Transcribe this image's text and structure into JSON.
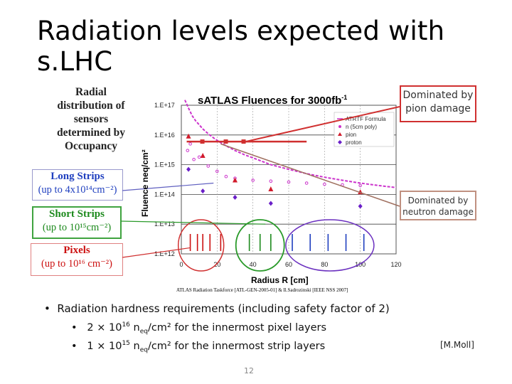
{
  "slide": {
    "title": "Radiation levels expected with s.LHC",
    "left_caption": [
      "Radial",
      "distribution of",
      "sensors",
      "determined by",
      "Occupancy"
    ],
    "boxes": {
      "long": {
        "title": "Long Strips",
        "sub": "(up to 4x10¹⁴cm⁻²)"
      },
      "short": {
        "title": "Short Strips",
        "sub": "(up to 10¹⁵cm⁻²)"
      },
      "pixels": {
        "title": "Pixels",
        "sub": "(up to 10¹⁶ cm⁻²)"
      }
    },
    "annotations": {
      "pion": [
        "Dominated by",
        "pion damage"
      ],
      "neutron": [
        "Dominated by",
        "neutron damage"
      ]
    },
    "bullet_main": "Radiation hardness requirements (including safety factor of 2)",
    "bullet_sub1": {
      "pre": "2 × 10",
      "exp": "16",
      "mid": " n",
      "subscript": "eq",
      "post": "/cm² for the innermost pixel layers"
    },
    "bullet_sub2": {
      "pre": "1 × 10",
      "exp": "15",
      "mid": " n",
      "subscript": "eq",
      "post": "/cm² for the innermost strip layers"
    },
    "credit": "[M.Moll]",
    "page_number": "12"
  },
  "colors": {
    "pion_box": "#d03030",
    "long": "#1f3fbf",
    "short": "#1d8a1d",
    "pixels": "#cc1010",
    "fit": "#cc33cc",
    "neutron": "#7a2fbf",
    "pion": "#d11b2b",
    "proton": "#6a1fc8"
  },
  "chart_data": {
    "type": "scatter",
    "title": "sATLAS Fluences for 3000fb",
    "title_sup": "-1",
    "xlabel": "Radius R [cm]",
    "ylabel": "Fluence neq/cm²",
    "x_ticks": [
      "0",
      "20",
      "40",
      "60",
      "80",
      "100",
      "120"
    ],
    "y_ticks": [
      "1.E+17",
      "1.E+16",
      "1.E+15",
      "1.E+14",
      "1.E+13",
      "1.E+12"
    ],
    "xlim": [
      0,
      120
    ],
    "ylim_log10": [
      12,
      17
    ],
    "log_y": true,
    "source_note": "ATLAS Radiation Taskforce [ATL-GEN-2005-01] & Il.Sadrozinski [IEEE NSS 2007]",
    "legend_position": "top-right",
    "series": [
      {
        "name": "ATRTF Formula",
        "kind": "line",
        "x": [
          2,
          4,
          6,
          8,
          10,
          12,
          15,
          18,
          22,
          26,
          30,
          35,
          40,
          45,
          50,
          60,
          70,
          80,
          90,
          100,
          110,
          120
        ],
        "y": [
          1.5e+17,
          8e+16,
          4.5e+16,
          3e+16,
          2.2e+16,
          1.6e+16,
          1.1e+16,
          8000000000000000.0,
          5500000000000000.0,
          4000000000000000.0,
          3000000000000000.0,
          2200000000000000.0,
          1700000000000000.0,
          1300000000000000.0,
          1000000000000000.0,
          700000000000000.0,
          500000000000000.0,
          380000000000000.0,
          300000000000000.0,
          240000000000000.0,
          200000000000000.0,
          170000000000000.0
        ]
      },
      {
        "name": "n (5cm poly)",
        "kind": "marker",
        "x": [
          3.5,
          5,
          7,
          10,
          15,
          20,
          25,
          30,
          40,
          50,
          60,
          70,
          80,
          90,
          100
        ],
        "y": [
          3000000000000000.0,
          5000000000000000.0,
          1500000000000000.0,
          1800000000000000.0,
          900000000000000.0,
          600000000000000.0,
          400000000000000.0,
          350000000000000.0,
          300000000000000.0,
          280000000000000.0,
          260000000000000.0,
          240000000000000.0,
          220000000000000.0,
          210000000000000.0,
          200000000000000.0
        ]
      },
      {
        "name": "pion",
        "kind": "marker",
        "x": [
          4,
          12,
          30,
          50,
          100
        ],
        "y": [
          9000000000000000.0,
          2000000000000000.0,
          300000000000000.0,
          150000000000000.0,
          120000000000000.0
        ]
      },
      {
        "name": "proton",
        "kind": "marker",
        "x": [
          4,
          12,
          30,
          50,
          100
        ],
        "y": [
          700000000000000.0,
          130000000000000.0,
          80000000000000.0,
          50000000000000.0,
          40000000000000.0
        ]
      }
    ],
    "pion_region_x": [
      3,
      70
    ],
    "pion_region_y": 6000000000000000.0
  }
}
